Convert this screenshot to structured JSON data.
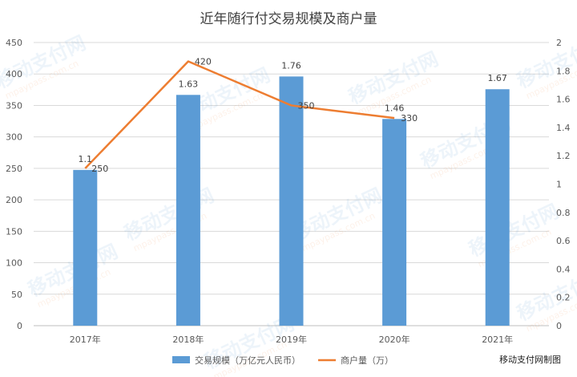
{
  "chart_data": {
    "type": "bar",
    "title": "近年随行付交易规模及商户量",
    "categories": [
      "2017年",
      "2018年",
      "2019年",
      "2020年",
      "2021年"
    ],
    "y_left": {
      "min": 0,
      "max": 450,
      "ticks": [
        "0",
        "50",
        "100",
        "150",
        "200",
        "250",
        "300",
        "350",
        "400",
        "450"
      ]
    },
    "y_right": {
      "min": 0,
      "max": 2,
      "ticks": [
        "0",
        "0.2",
        "0.4",
        "0.6",
        "0.8",
        "1",
        "1.2",
        "1.4",
        "1.6",
        "1.8",
        "2"
      ]
    },
    "series": [
      {
        "name": "交易规模（万亿元人民币）",
        "kind": "bar",
        "axis": "right",
        "color": "#5b9bd5",
        "values": [
          1.1,
          1.63,
          1.76,
          1.46,
          1.67
        ],
        "labels": [
          "1.1",
          "1.63",
          "1.76",
          "1.46",
          "1.67"
        ]
      },
      {
        "name": "商户量（万）",
        "kind": "line",
        "axis": "left",
        "color": "#ed7d31",
        "values": [
          250,
          420,
          350,
          330,
          null
        ],
        "labels": [
          "250",
          "420",
          "350",
          "330",
          ""
        ]
      }
    ],
    "legend_position": "bottom",
    "grid": true
  },
  "credit": "移动支付网制图",
  "watermark": {
    "brand": "移动支付网",
    "url": "mpaypass.com.cn"
  }
}
